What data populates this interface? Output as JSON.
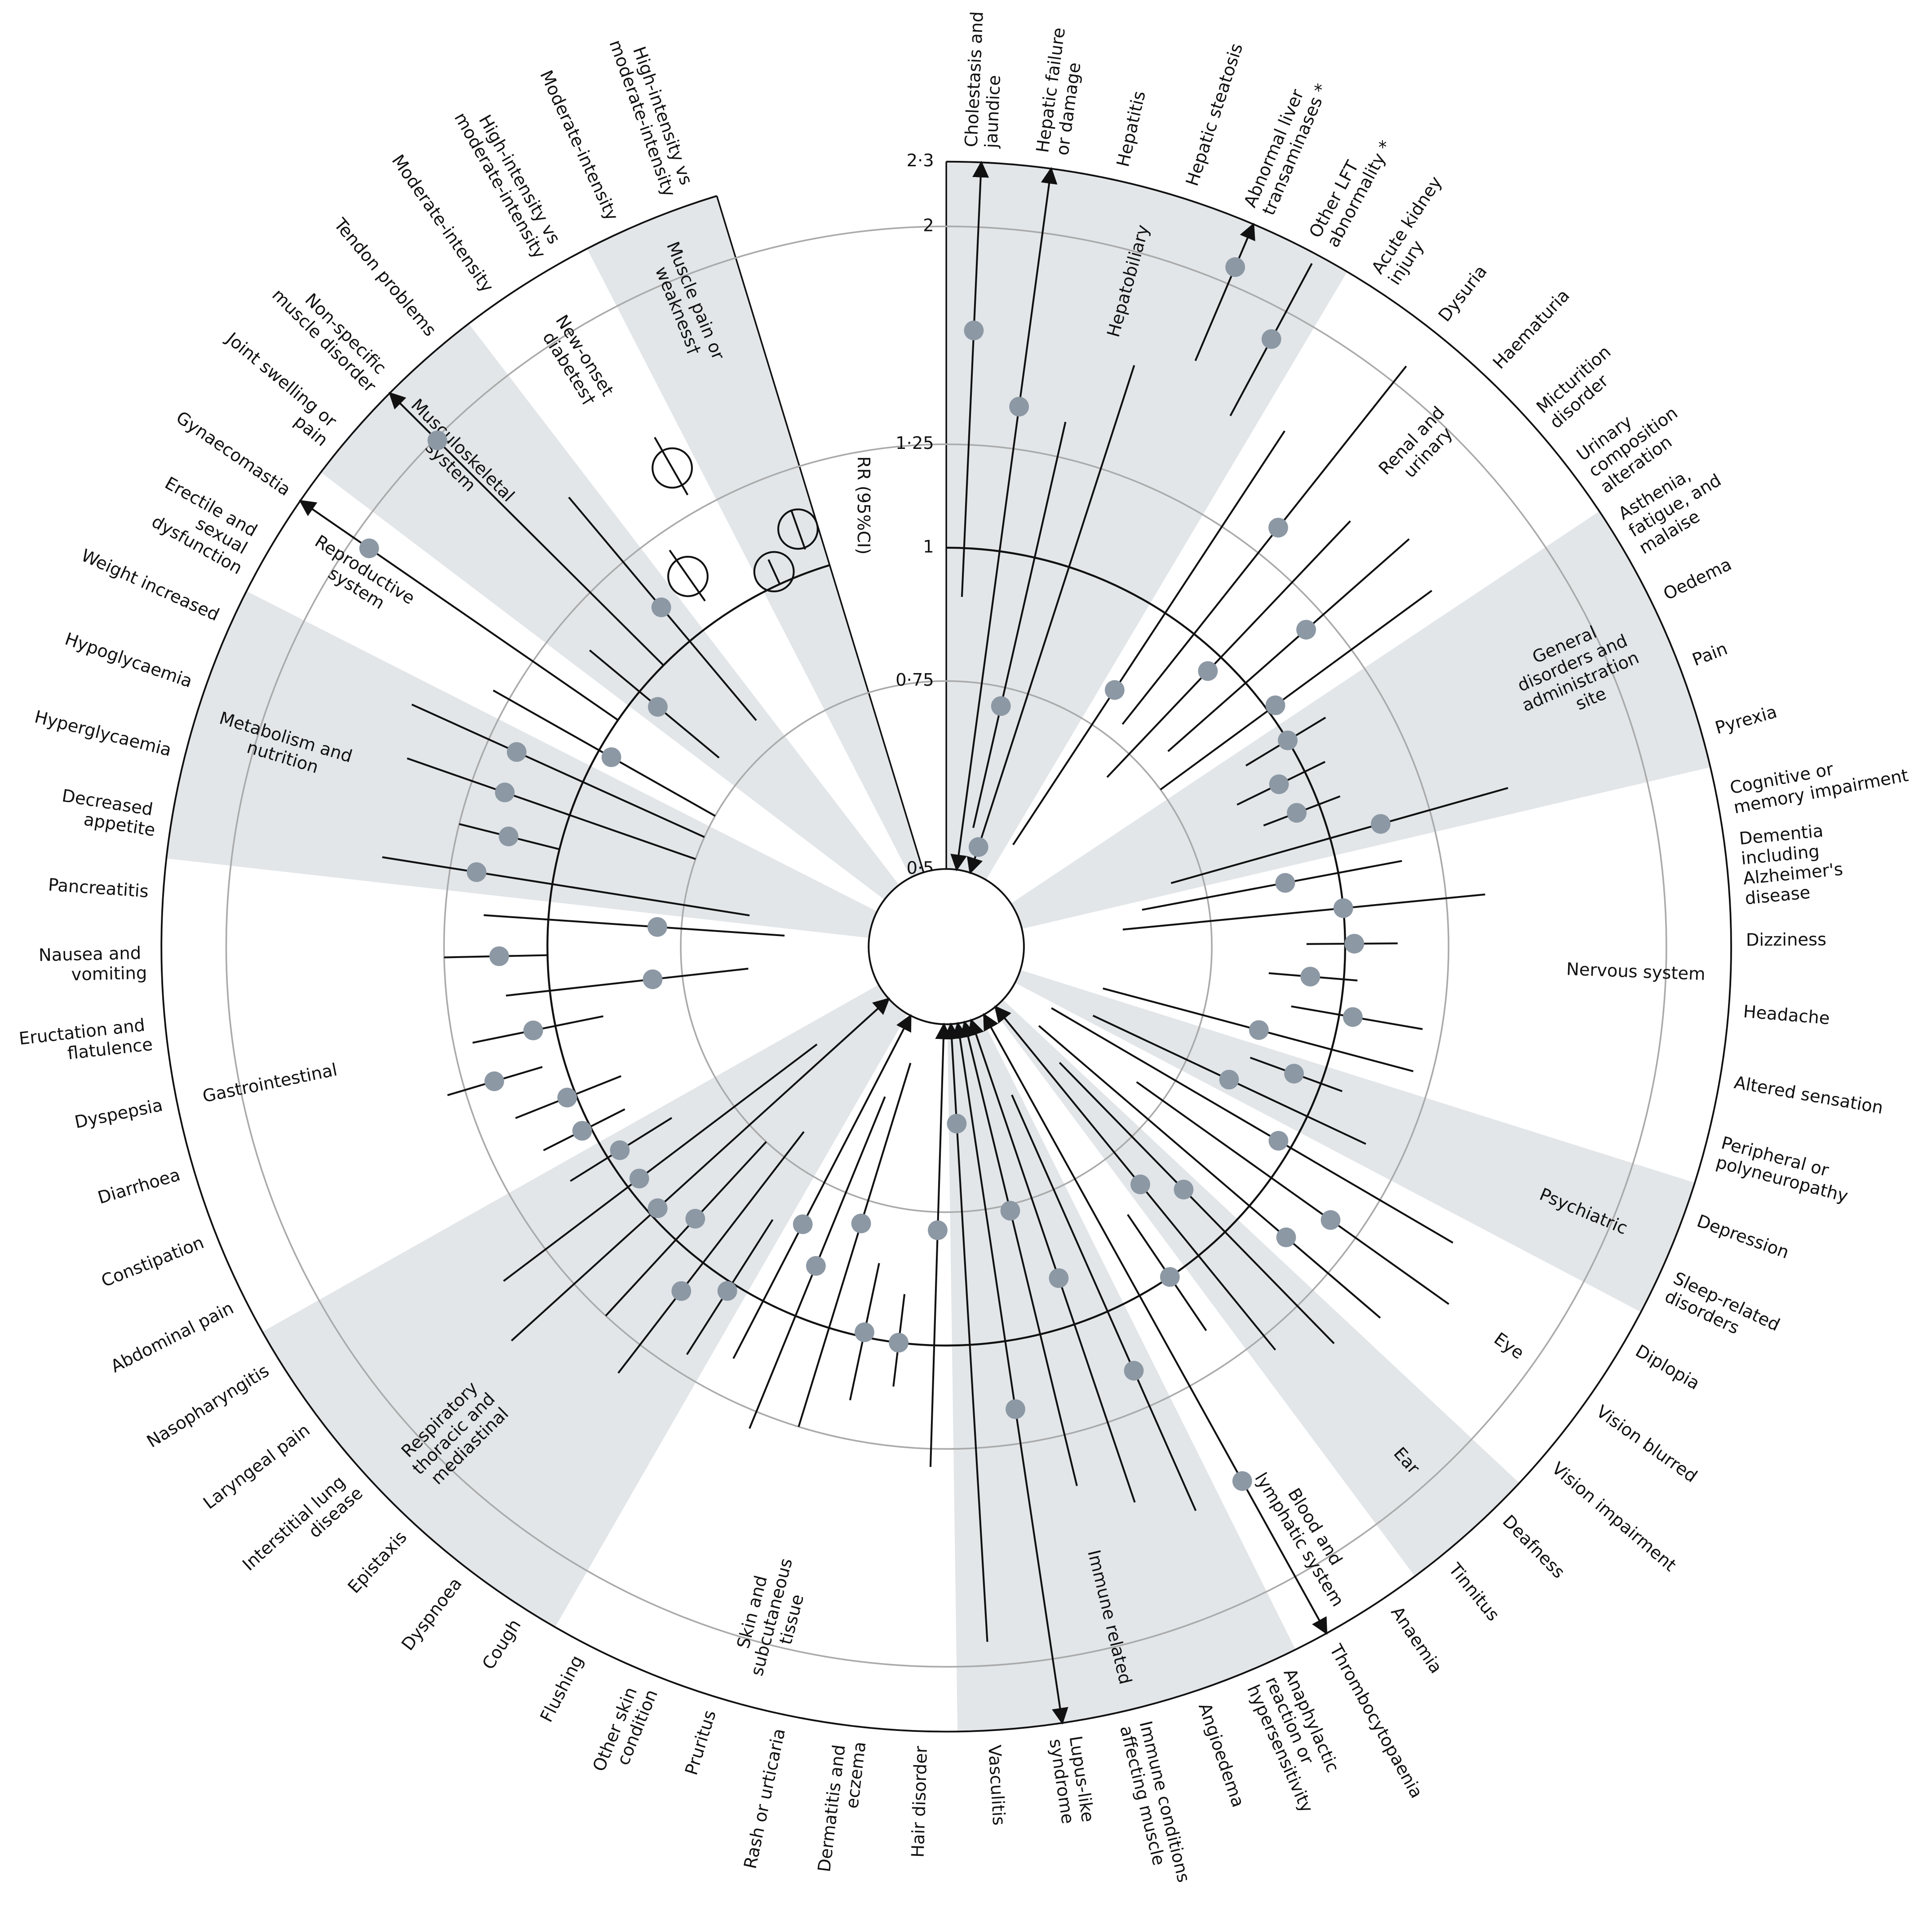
{
  "chart_data": {
    "type": "radial-forest",
    "axis_label": "RR (95%CI)",
    "scale": "log",
    "rlim": [
      0.5,
      2.3
    ],
    "rticks": [
      {
        "value": 0.5,
        "label": "0·5"
      },
      {
        "value": 0.75,
        "label": "0·75"
      },
      1,
      {
        "value": 1.25,
        "label": "1·25"
      },
      2,
      {
        "value": 2.3,
        "label": "2·3"
      }
    ],
    "reference": 1,
    "shade_color": "#e2e6e9",
    "point_color": "#8c98a4",
    "sections": [
      {
        "name": "Hepatobiliary",
        "marker": "filled",
        "outcomes": [
          "Cholestasis and jaundice",
          "Hepatic failure or damage",
          "Hepatitis",
          "Hepatic steatosis",
          "Abnormal liver transaminases *",
          "Other LFT abnormality *"
        ],
        "estimate": [
          1.6,
          1.37,
          0.72,
          0.53,
          2.08,
          1.87
        ],
        "lower": [
          0.9,
          0.5,
          0.55,
          0.5,
          1.67,
          1.55
        ],
        "upper": [
          2.3,
          2.3,
          1.35,
          1.58,
          2.3,
          2.25
        ]
      },
      {
        "name": "Renal and urinary",
        "marker": "filled",
        "outcomes": [
          "Acute kidney injury",
          "Dysuria",
          "Haematuria",
          "Micturition disorder",
          "Urinary composition alteration"
        ],
        "estimate": [
          0.82,
          1.34,
          0.96,
          1.19,
          1.02
        ],
        "lower": [
          0.55,
          0.78,
          0.7,
          0.8,
          0.75
        ],
        "upper": [
          1.6,
          2.09,
          1.5,
          1.6,
          1.55
        ]
      },
      {
        "name": "General disorders and administration site",
        "marker": "filled",
        "outcomes": [
          "Asthenia, fatigue, and malaise",
          "Oedema",
          "Pain",
          "Pyrexia"
        ],
        "estimate": [
          1.0,
          0.94,
          0.95,
          1.12
        ],
        "lower": [
          0.9,
          0.85,
          0.88,
          0.7
        ],
        "upper": [
          1.1,
          1.05,
          1.05,
          1.49
        ]
      },
      {
        "name": "Nervous system",
        "marker": "filled",
        "outcomes": [
          "Cognitive or memory impairment",
          "Dementia including Alzheimer's disease",
          "Dizziness",
          "Headache",
          "Altered sensation",
          "Peripheral or polyneuropathy"
        ],
        "estimate": [
          0.89,
          1.0,
          1.02,
          0.93,
          1.03,
          0.85
        ],
        "lower": [
          0.65,
          0.62,
          0.92,
          0.85,
          0.9,
          0.6
        ],
        "upper": [
          1.15,
          1.36,
          1.12,
          1.03,
          1.2,
          1.2
        ]
      },
      {
        "name": "Psychiatric",
        "marker": "filled",
        "outcomes": [
          "Depression",
          "Sleep-related disorders"
        ],
        "estimate": [
          0.94,
          0.83
        ],
        "lower": [
          0.85,
          0.6
        ],
        "upper": [
          1.05,
          1.15
        ]
      },
      {
        "name": "Eye",
        "marker": "filled",
        "outcomes": [
          "Diplopia",
          "Vision blurred",
          "Vision impairment"
        ],
        "estimate": [
          0.97,
          1.17,
          1.11
        ],
        "lower": [
          0.55,
          0.7,
          0.55
        ],
        "upper": [
          1.5,
          1.6,
          1.45
        ]
      },
      {
        "name": "Ear",
        "marker": "filled",
        "outcomes": [
          "Deafness",
          "Tinnitus"
        ],
        "estimate": [
          0.88,
          0.82
        ],
        "lower": [
          0.6,
          0.5
        ],
        "upper": [
          1.4,
          1.3
        ]
      },
      {
        "name": "Blood and lymphatic system",
        "marker": "filled",
        "outcomes": [
          "Anaemia",
          "Thrombocytopaenia"
        ],
        "estimate": [
          1.0,
          1.58
        ],
        "lower": [
          0.85,
          0.5
        ],
        "upper": [
          1.15,
          2.3
        ]
      },
      {
        "name": "Immune related",
        "marker": "filled",
        "outcomes": [
          "Anaphylactic reaction or hypersensitivity",
          "Angioedema",
          "Immune conditions affecting muscle",
          "Lupus-like syndrome",
          "Vasculitis"
        ],
        "estimate": [
          1.15,
          0.9,
          0.76,
          1.16,
          0.62
        ],
        "lower": [
          0.6,
          0.5,
          0.5,
          0.5,
          0.5
        ],
        "upper": [
          1.6,
          1.5,
          1.4,
          2.3,
          1.9
        ]
      },
      {
        "name": "Skin and subcutaneous tissue",
        "marker": "filled",
        "outcomes": [
          "Hair disorder",
          "Dermatitis and eczema",
          "Rash or urticaria",
          "Pruritus",
          "Other skin condition",
          "Flushing"
        ],
        "estimate": [
          0.78,
          1.0,
          0.99,
          0.79,
          0.89,
          0.83
        ],
        "lower": [
          0.5,
          0.9,
          0.85,
          0.55,
          0.6,
          0.5
        ],
        "upper": [
          1.3,
          1.1,
          1.15,
          1.25,
          1.3,
          1.15
        ]
      },
      {
        "name": "Respiratory thoracic and mediastinal",
        "marker": "filled",
        "outcomes": [
          "Cough",
          "Dyspnoea",
          "Epistaxis",
          "Interstitial lung disease",
          "Laryngeal pain",
          "Nasopharyngitis"
        ],
        "estimate": [
          1.02,
          1.08,
          0.94,
          0.98,
          0.97,
          0.97
        ],
        "lower": [
          0.85,
          0.7,
          0.75,
          0.5,
          0.6,
          0.85
        ],
        "upper": [
          1.2,
          1.35,
          1.25,
          1.5,
          1.4,
          1.1
        ]
      },
      {
        "name": "Gastrointestinal",
        "marker": "filled",
        "outcomes": [
          "Abdominal pain",
          "Constipation",
          "Diarrhoea",
          "Dyspepsia",
          "Eructation and flatulence",
          "Nausea and vomiting",
          "Pancreatitis"
        ],
        "estimate": [
          1.02,
          1.02,
          1.17,
          1.05,
          0.8,
          1.11,
          0.79
        ],
        "lower": [
          0.92,
          0.9,
          1.05,
          0.9,
          0.65,
          1.0,
          0.6
        ],
        "upper": [
          1.12,
          1.15,
          1.3,
          1.2,
          1.1,
          1.25,
          1.15
        ]
      },
      {
        "name": "Metabolism and nutrition",
        "marker": "filled",
        "outcomes": [
          "Decreased appetite",
          "Hyperglycaemia",
          "Hypoglycaemia",
          "Weight increased"
        ],
        "estimate": [
          1.18,
          1.12,
          1.16,
          1.17
        ],
        "lower": [
          0.65,
          1.0,
          0.75,
          0.75
        ],
        "upper": [
          1.45,
          1.25,
          1.45,
          1.5
        ]
      },
      {
        "name": "Reproductive system",
        "marker": "filled",
        "outcomes": [
          "Erectile and sexual dysfunction",
          "Gynaecomastia"
        ],
        "estimate": [
          0.97,
          1.92
        ],
        "lower": [
          0.75,
          1.0
        ],
        "upper": [
          1.3,
          2.3
        ]
      },
      {
        "name": "Musculoskeletal system",
        "marker": "filled",
        "outcomes": [
          "Joint swelling or pain",
          "Non-specific muscle disorder",
          "Tendon problems"
        ],
        "estimate": [
          0.95,
          1.99,
          1.1
        ],
        "lower": [
          0.8,
          1.0,
          0.8
        ],
        "upper": [
          1.15,
          2.3,
          1.5
        ]
      },
      {
        "name": "New-onset diabetes†",
        "marker": "open",
        "outcomes": [
          "Moderate-intensity",
          "High-intensity vs moderate-intensity"
        ],
        "estimate": [
          1.12,
          1.39
        ],
        "lower": [
          1.05,
          1.3
        ],
        "upper": [
          1.2,
          1.5
        ]
      },
      {
        "name": "Muscle pain or weakness†",
        "marker": "open",
        "outcomes": [
          "Moderate-intensity",
          "High-intensity vs moderate-intensity"
        ],
        "estimate": [
          1.03,
          1.1
        ],
        "lower": [
          1.0,
          1.05
        ],
        "upper": [
          1.06,
          1.15
        ]
      }
    ]
  }
}
